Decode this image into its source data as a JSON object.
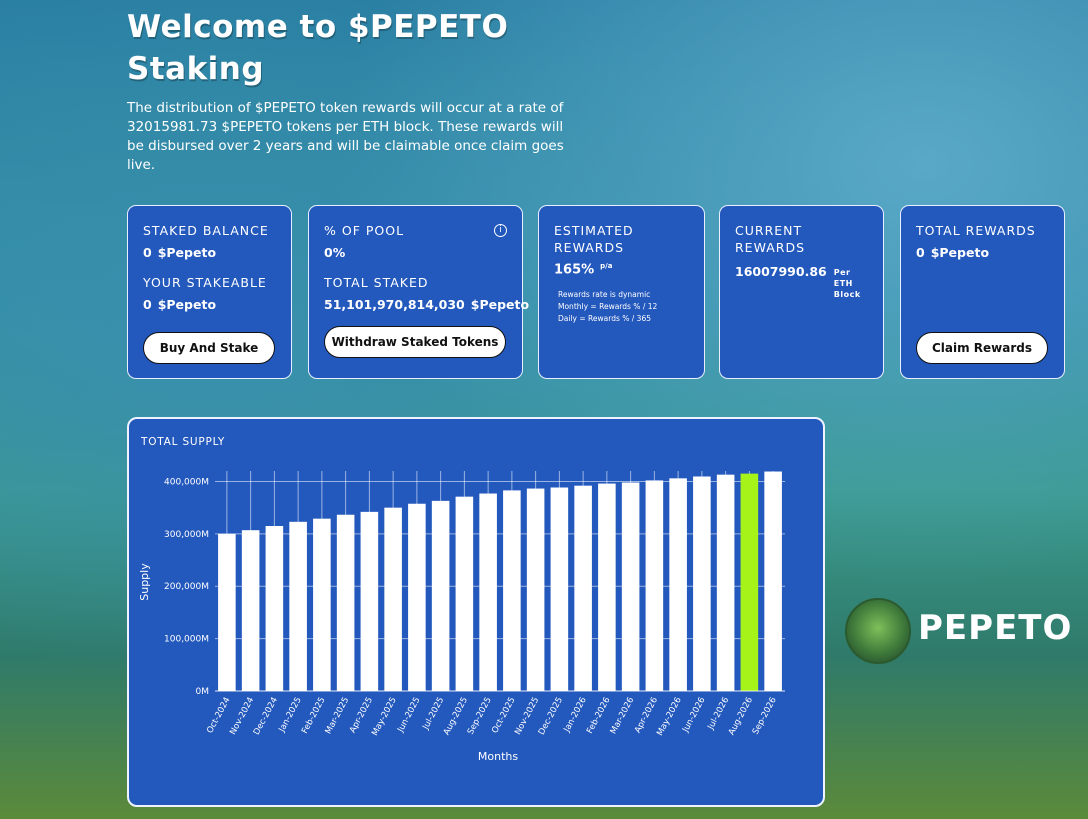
{
  "header": {
    "title": "Welcome to $PEPETO Staking",
    "description": "The distribution of $PEPETO token rewards will occur at a rate of 32015981.73 $PEPETO tokens per ETH block. These rewards will be disbursed over 2 years and will be claimable once claim goes live."
  },
  "cards": [
    {
      "label": "STAKED BALANCE",
      "value": "0",
      "unit": "$Pepeto",
      "label2": "YOUR STAKEABLE",
      "value2": "0",
      "unit2": "$Pepeto",
      "button": "Buy And Stake"
    },
    {
      "label": "% OF POOL",
      "value": "0%",
      "label2": "TOTAL STAKED",
      "value2": "51,101,970,814,030",
      "unit2": "$Pepeto",
      "button": "Withdraw Staked Tokens"
    },
    {
      "label": "ESTIMATED REWARDS",
      "value": "165%",
      "unit": "p/a",
      "notes": [
        "Rewards rate is dynamic",
        "Monthly = Rewards % / 12",
        "Daily = Rewards % / 365"
      ]
    },
    {
      "label": "CURRENT REWARDS",
      "value": "16007990.86",
      "unit": "Per ETH Block"
    },
    {
      "label": "TOTAL REWARDS",
      "value": "0",
      "unit": "$Pepeto",
      "button": "Claim Rewards"
    }
  ],
  "brand": "PEPETO",
  "chart_data": {
    "type": "bar",
    "title": "TOTAL SUPPLY",
    "x_label": "Months",
    "y_label": "Supply",
    "categories": [
      "Oct-2024",
      "Nov-2024",
      "Dec-2024",
      "Jan-2025",
      "Feb-2025",
      "Mar-2025",
      "Apr-2025",
      "May-2025",
      "Jun-2025",
      "Jul-2025",
      "Aug-2025",
      "Sep-2025",
      "Oct-2025",
      "Nov-2025",
      "Dec-2025",
      "Jan-2026",
      "Feb-2026",
      "Mar-2026",
      "Apr-2026",
      "May-2026",
      "Jun-2026",
      "Jul-2026",
      "Aug-2026",
      "Sep-2026"
    ],
    "values": [
      300000,
      307000,
      315000,
      323000,
      329000,
      336500,
      342000,
      350000,
      357500,
      363000,
      371000,
      377000,
      383000,
      386500,
      388500,
      392000,
      396000,
      398000,
      402000,
      406000,
      409500,
      413000,
      415000,
      419000
    ],
    "colors": [
      "#ffffff",
      "#ffffff",
      "#ffffff",
      "#ffffff",
      "#ffffff",
      "#ffffff",
      "#ffffff",
      "#ffffff",
      "#ffffff",
      "#ffffff",
      "#ffffff",
      "#ffffff",
      "#ffffff",
      "#ffffff",
      "#ffffff",
      "#ffffff",
      "#ffffff",
      "#ffffff",
      "#ffffff",
      "#ffffff",
      "#ffffff",
      "#ffffff",
      "#a6f31a",
      "#ffffff"
    ],
    "ylim": [
      0,
      420000
    ],
    "yticks": [
      {
        "value": 0,
        "label": "0M"
      },
      {
        "value": 100000,
        "label": "100,000M"
      },
      {
        "value": 200000,
        "label": "200,000M"
      },
      {
        "value": 300000,
        "label": "300,000M"
      },
      {
        "value": 400000,
        "label": "400,000M"
      }
    ],
    "grid": true
  }
}
